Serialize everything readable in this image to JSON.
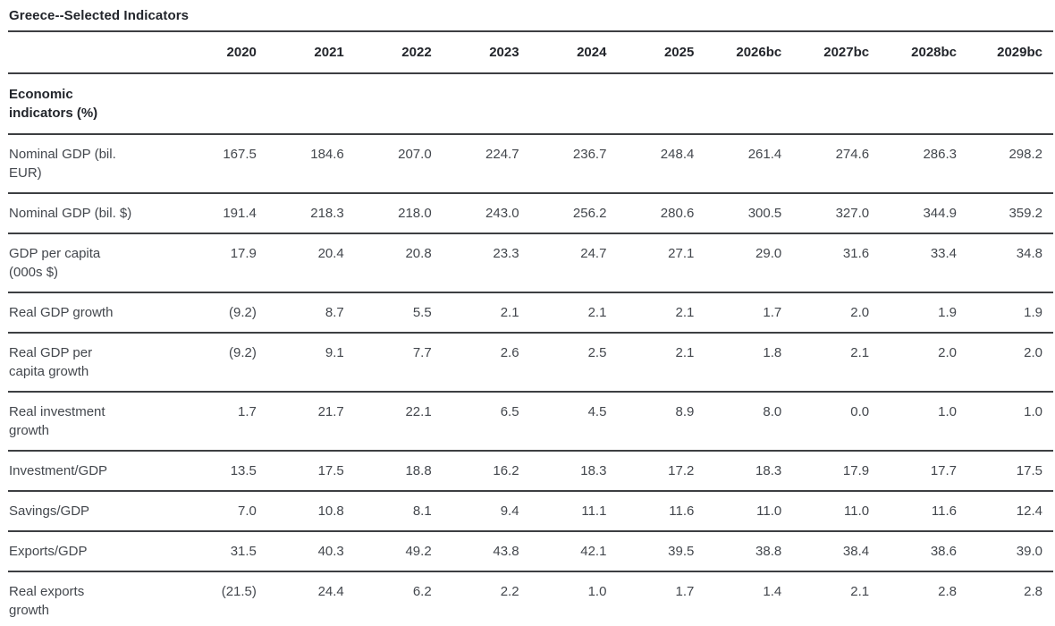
{
  "title": "Greece--Selected Indicators",
  "table": {
    "section_header": "Economic\nindicators (%)",
    "columns": [
      "2020",
      "2021",
      "2022",
      "2023",
      "2024",
      "2025",
      "2026bc",
      "2027bc",
      "2028bc",
      "2029bc"
    ],
    "rows": [
      {
        "label": "Nominal GDP (bil.\nEUR)",
        "values": [
          "167.5",
          "184.6",
          "207.0",
          "224.7",
          "236.7",
          "248.4",
          "261.4",
          "274.6",
          "286.3",
          "298.2"
        ]
      },
      {
        "label": "Nominal GDP (bil. $)",
        "values": [
          "191.4",
          "218.3",
          "218.0",
          "243.0",
          "256.2",
          "280.6",
          "300.5",
          "327.0",
          "344.9",
          "359.2"
        ]
      },
      {
        "label": "GDP per capita\n(000s $)",
        "values": [
          "17.9",
          "20.4",
          "20.8",
          "23.3",
          "24.7",
          "27.1",
          "29.0",
          "31.6",
          "33.4",
          "34.8"
        ]
      },
      {
        "label": "Real GDP growth",
        "values": [
          "(9.2)",
          "8.7",
          "5.5",
          "2.1",
          "2.1",
          "2.1",
          "1.7",
          "2.0",
          "1.9",
          "1.9"
        ]
      },
      {
        "label": "Real GDP per\ncapita growth",
        "values": [
          "(9.2)",
          "9.1",
          "7.7",
          "2.6",
          "2.5",
          "2.1",
          "1.8",
          "2.1",
          "2.0",
          "2.0"
        ]
      },
      {
        "label": "Real investment\ngrowth",
        "values": [
          "1.7",
          "21.7",
          "22.1",
          "6.5",
          "4.5",
          "8.9",
          "8.0",
          "0.0",
          "1.0",
          "1.0"
        ]
      },
      {
        "label": "Investment/GDP",
        "values": [
          "13.5",
          "17.5",
          "18.8",
          "16.2",
          "18.3",
          "17.2",
          "18.3",
          "17.9",
          "17.7",
          "17.5"
        ]
      },
      {
        "label": "Savings/GDP",
        "values": [
          "7.0",
          "10.8",
          "8.1",
          "9.4",
          "11.1",
          "11.6",
          "11.0",
          "11.0",
          "11.6",
          "12.4"
        ]
      },
      {
        "label": "Exports/GDP",
        "values": [
          "31.5",
          "40.3",
          "49.2",
          "43.8",
          "42.1",
          "39.5",
          "38.8",
          "38.4",
          "38.6",
          "39.0"
        ]
      },
      {
        "label": "Real exports\ngrowth",
        "values": [
          "(21.5)",
          "24.4",
          "6.2",
          "2.2",
          "1.0",
          "1.7",
          "1.4",
          "2.1",
          "2.8",
          "2.8"
        ]
      }
    ]
  },
  "colors": {
    "rule": "#3d3f42",
    "heading_text": "#22252b",
    "body_text": "#43474d",
    "background": "#ffffff"
  }
}
